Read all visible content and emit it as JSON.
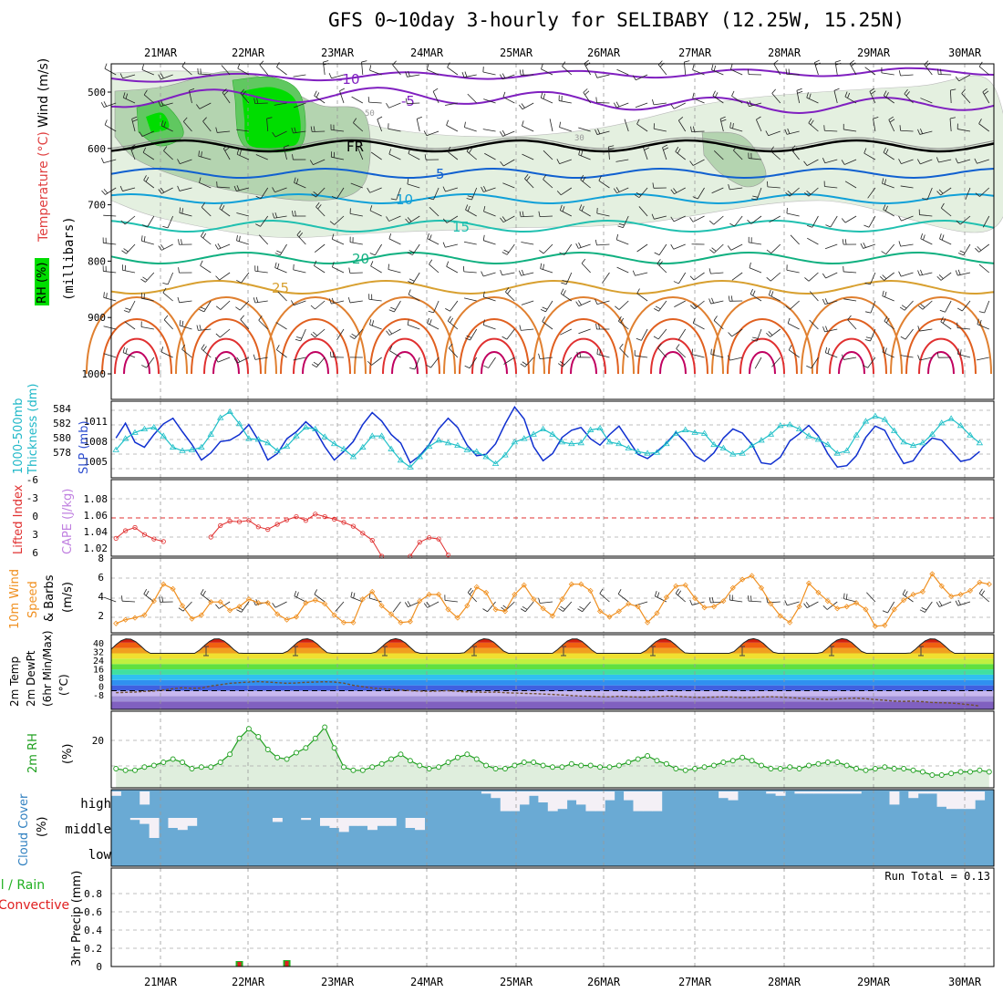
{
  "title": "GFS 0~10day 3-hourly for SELIBABY (12.25W, 15.25N)",
  "date_labels": [
    "21MAR",
    "22MAR",
    "23MAR",
    "24MAR",
    "25MAR",
    "26MAR",
    "27MAR",
    "28MAR",
    "29MAR",
    "30MAR"
  ],
  "colors": {
    "rh_green": "#00dd00",
    "rh_light": "#e4f0e0",
    "rh_mid": "#b4d4b0",
    "cloud_blue": "#6aaad4",
    "cloud_white": "#f4f0f6",
    "slp": "#1030d0",
    "thickness": "#20c0c8",
    "li": "#e03030",
    "wind10": "#f09020",
    "rh2m": "#20a020",
    "precip_total": "#20b020",
    "precip_conv": "#e02020"
  },
  "chart_data": [
    {
      "type": "contour",
      "panel": "upper-air",
      "ylabels_left": [
        "RH (%)",
        "Temperature (°C)",
        "Wind (m/s)",
        "(millibars)"
      ],
      "yticks": [
        500,
        600,
        700,
        800,
        900,
        1000
      ],
      "ylim": [
        1000,
        450
      ],
      "isotherm_labels": [
        "-10",
        "-5",
        "FR",
        "5",
        "10",
        "15",
        "20",
        "25"
      ],
      "rh_contour_labels": [
        "30",
        "50"
      ]
    },
    {
      "type": "line",
      "panel": "slp-thickness",
      "ylabels": [
        "1000-500mb Thickness (dm)",
        "SLP (mb)"
      ],
      "thickness_ticks": [
        "584",
        "582",
        "580",
        "578"
      ],
      "slp_ticks": [
        "1011",
        "1008",
        "1005"
      ],
      "series": [
        {
          "name": "SLP (mb)",
          "ylim": [
            1003.4,
            1013.2
          ],
          "values": [
            1008.5,
            1010.6,
            1007.9,
            1007.2,
            1009.0,
            1010.5,
            1011.3,
            1009.4,
            1007.6,
            1005.4,
            1006.4,
            1008.0,
            1008.2,
            1009.0,
            1010.4,
            1008.2,
            1005.4,
            1006.3,
            1008.4,
            1009.4,
            1010.8,
            1009.6,
            1007.3,
            1005.4,
            1006.6,
            1008.0,
            1010.4,
            1012.1,
            1010.9,
            1009.0,
            1007.8,
            1005.0,
            1006.0,
            1007.6,
            1009.8,
            1011.3,
            1010.0,
            1007.5,
            1006.0,
            1006.2,
            1007.7,
            1010.5,
            1012.9,
            1011.2,
            1007.3,
            1005.3,
            1006.3,
            1008.6,
            1009.6,
            1010.0,
            1008.4,
            1007.5,
            1009.0,
            1010.2,
            1008.2,
            1006.2,
            1005.6,
            1006.6,
            1007.8,
            1009.3,
            1007.9,
            1006.0,
            1005.2,
            1006.4,
            1008.5,
            1009.8,
            1009.2,
            1007.6,
            1005.0,
            1004.8,
            1005.8,
            1008.1,
            1009.1,
            1010.3,
            1008.8,
            1006.3,
            1004.4,
            1004.6,
            1006.0,
            1008.6,
            1010.2,
            1009.6,
            1007.1,
            1004.9,
            1005.3,
            1007.2,
            1008.5,
            1008.2,
            1006.7,
            1005.2,
            1005.5,
            1006.6
          ]
        },
        {
          "name": "1000-500mb Thickness (dm)",
          "ylim": [
            577.2,
            585.2
          ],
          "values": [
            580.0,
            581.3,
            582.0,
            582.4,
            582.6,
            581.6,
            580.3,
            579.9,
            580.0,
            580.3,
            581.8,
            583.7,
            584.4,
            583.0,
            581.3,
            581.2,
            580.8,
            579.9,
            580.4,
            581.6,
            582.6,
            582.4,
            581.5,
            580.7,
            580.1,
            579.2,
            580.3,
            581.6,
            581.6,
            580.1,
            578.8,
            578.0,
            579.2,
            580.4,
            581.1,
            580.8,
            580.5,
            580.0,
            579.8,
            579.2,
            578.4,
            579.4,
            580.9,
            581.3,
            581.8,
            582.4,
            581.8,
            580.9,
            580.7,
            580.8,
            582.3,
            582.5,
            580.9,
            580.7,
            580.2,
            579.8,
            579.6,
            579.7,
            580.7,
            581.9,
            582.3,
            582.0,
            581.9,
            580.6,
            580.2,
            579.5,
            579.6,
            580.5,
            581.1,
            581.8,
            582.8,
            582.9,
            582.4,
            581.6,
            581.2,
            580.6,
            579.6,
            579.9,
            581.7,
            583.3,
            583.9,
            583.5,
            582.2,
            580.9,
            580.5,
            580.8,
            581.8,
            583.1,
            583.6,
            582.8,
            581.7,
            580.8
          ]
        }
      ]
    },
    {
      "type": "line",
      "panel": "lifted-index-cape",
      "ylabels": [
        "Lifted Index",
        "CAPE (J/kg)"
      ],
      "li_ticks": [
        "-6",
        "-3",
        "0",
        "3",
        "6"
      ],
      "cape_ticks": [
        "1.08",
        "1.06",
        "1.04",
        "1.02"
      ],
      "series": [
        {
          "name": "Lifted Index",
          "ylim": [
            6,
            -6
          ],
          "segments": [
            [
              [
                0,
                3.2
              ],
              [
                1,
                2.0
              ],
              [
                2,
                1.5
              ],
              [
                3,
                2.6
              ],
              [
                4,
                3.3
              ],
              [
                5,
                3.7
              ]
            ],
            [
              [
                10,
                3.0
              ],
              [
                11,
                1.2
              ],
              [
                12,
                0.5
              ],
              [
                13,
                0.6
              ],
              [
                14,
                0.4
              ],
              [
                15,
                1.4
              ],
              [
                16,
                1.8
              ],
              [
                17,
                1.0
              ],
              [
                18,
                0.3
              ],
              [
                19,
                -0.2
              ],
              [
                20,
                0.4
              ],
              [
                21,
                -0.6
              ],
              [
                22,
                -0.2
              ],
              [
                23,
                0.2
              ],
              [
                24,
                0.7
              ],
              [
                25,
                1.3
              ],
              [
                26,
                2.4
              ],
              [
                27,
                3.5
              ],
              [
                28,
                6.0
              ]
            ],
            [
              [
                31,
                6.0
              ],
              [
                32,
                3.8
              ],
              [
                33,
                3.1
              ],
              [
                34,
                3.3
              ],
              [
                35,
                5.8
              ]
            ]
          ]
        }
      ]
    },
    {
      "type": "line",
      "panel": "10m-wind",
      "ylabels": [
        "10m Wind",
        "Speed",
        "& Barbs",
        "(m/s)"
      ],
      "yticks": [
        "8",
        "6",
        "4",
        "2"
      ],
      "ylim": [
        0.4,
        8.4
      ],
      "values": [
        1.4,
        1.8,
        2.0,
        2.3,
        3.8,
        5.6,
        5.1,
        3.3,
        1.9,
        2.3,
        3.7,
        3.7,
        2.8,
        3.2,
        4.0,
        3.6,
        3.6,
        2.4,
        1.8,
        2.1,
        3.6,
        3.9,
        3.5,
        2.3,
        1.5,
        1.5,
        4.0,
        4.8,
        3.3,
        2.4,
        1.5,
        1.6,
        3.8,
        4.5,
        4.5,
        2.9,
        2.0,
        3.3,
        5.3,
        4.7,
        2.9,
        2.7,
        4.5,
        5.5,
        4.0,
        3.0,
        2.2,
        4.0,
        5.6,
        5.6,
        4.9,
        2.7,
        2.1,
        2.7,
        3.5,
        3.2,
        1.5,
        2.5,
        4.2,
        5.4,
        5.5,
        4.1,
        3.1,
        3.2,
        3.8,
        5.2,
        6.1,
        6.5,
        5.2,
        3.5,
        2.2,
        1.5,
        3.2,
        5.7,
        4.7,
        3.8,
        3.0,
        3.2,
        3.6,
        2.9,
        1.1,
        1.2,
        2.9,
        3.9,
        4.5,
        4.8,
        6.7,
        5.4,
        4.3,
        4.5,
        4.9,
        5.8,
        5.6
      ]
    },
    {
      "type": "area",
      "panel": "2m-temp",
      "ylabels": [
        "2m Temp",
        "2m DewPt",
        "(6hr Min/Max)",
        "(°C)"
      ],
      "yticks": [
        "40",
        "32",
        "24",
        "16",
        "8",
        "0",
        "-8"
      ],
      "ylim": [
        -14,
        42
      ],
      "temp_daily": {
        "min": 28,
        "max": 39
      },
      "dewpt": [
        -1.5,
        -1.2,
        -1.0,
        -0.5,
        -0.2,
        0.5,
        1.5,
        2.2,
        1.8,
        2.0,
        3.5,
        4.5,
        5.5,
        6.0,
        6.5,
        6.8,
        6.5,
        6.0,
        5.5,
        5.8,
        6.3,
        6.5,
        6.7,
        6.5,
        5.7,
        4.0,
        3.0,
        2.0,
        1.5,
        1.0,
        0.5,
        0.0,
        -0.3,
        -0.5,
        -0.2,
        0.0,
        -0.5,
        -0.8,
        -1.0,
        -1.2,
        -1.0,
        -1.5,
        -1.8,
        -2.0,
        -2.2,
        -2.5,
        -2.8,
        -3.2,
        -3.6,
        -4.0,
        -4.2,
        -4.5,
        -4.6,
        -4.2,
        -4.5,
        -4.8,
        -4.8,
        -4.4,
        -4.0,
        -4.2,
        -4.6,
        -5.0,
        -5.0,
        -4.8,
        -4.6,
        -4.8,
        -5.2,
        -5.0,
        -4.7,
        -4.5,
        -4.8,
        -5.2,
        -5.6,
        -6.0,
        -6.3,
        -6.6,
        -6.2,
        -5.8,
        -5.5,
        -6.0,
        -6.6,
        -7.2,
        -7.8,
        -8.0,
        -7.8,
        -8.2,
        -8.8,
        -9.0,
        -9.2,
        -9.8,
        -10.5,
        -11.5
      ]
    },
    {
      "type": "line",
      "panel": "2m-rh",
      "ylabels": [
        "2m RH",
        "(%)"
      ],
      "yticks": [
        "20"
      ],
      "ylim": [
        -7,
        41
      ],
      "values": [
        5,
        4,
        4,
        6,
        7,
        9,
        11,
        9,
        5,
        6,
        6,
        9,
        14,
        24,
        30,
        25,
        17,
        12,
        11,
        15,
        18,
        24,
        31,
        18,
        6,
        4,
        4,
        6,
        8,
        11,
        14,
        10,
        7,
        5,
        6,
        9,
        12,
        14,
        11,
        7,
        5,
        5,
        7,
        9,
        9,
        7,
        6,
        6,
        8,
        7,
        7,
        6,
        6,
        7,
        9,
        11,
        13,
        10,
        8,
        5,
        4,
        5,
        6,
        7,
        9,
        10,
        12,
        10,
        7,
        5,
        5,
        6,
        5,
        7,
        8,
        9,
        9,
        7,
        5,
        4,
        5,
        6,
        5,
        5,
        4,
        3,
        1,
        1,
        2,
        3,
        3,
        4,
        3
      ]
    },
    {
      "type": "bar",
      "panel": "cloud-cover",
      "ylabels": [
        "Cloud Cover",
        "(%)"
      ],
      "levels": [
        "high",
        "middle",
        "low"
      ],
      "high": [
        20,
        0,
        0,
        60,
        0,
        0,
        0,
        0,
        0,
        0,
        0,
        0,
        0,
        0,
        0,
        0,
        0,
        0,
        0,
        0,
        0,
        0,
        0,
        0,
        0,
        0,
        0,
        0,
        0,
        0,
        0,
        0,
        0,
        0,
        0,
        0,
        0,
        0,
        0,
        10,
        30,
        90,
        90,
        60,
        20,
        50,
        90,
        80,
        40,
        60,
        90,
        90,
        40,
        0,
        40,
        90,
        90,
        90,
        0,
        0,
        0,
        0,
        0,
        0,
        30,
        40,
        0,
        0,
        0,
        10,
        20,
        0,
        10,
        10,
        10,
        10,
        10,
        10,
        10,
        0,
        0,
        0,
        60,
        0,
        30,
        10,
        10,
        70,
        80,
        80,
        80,
        40,
        0
      ],
      "middle": [
        0,
        0,
        10,
        30,
        100,
        0,
        50,
        60,
        40,
        0,
        0,
        0,
        0,
        0,
        0,
        0,
        0,
        20,
        0,
        0,
        10,
        0,
        40,
        50,
        70,
        40,
        40,
        60,
        40,
        40,
        0,
        50,
        60,
        0,
        0,
        0,
        0,
        0,
        0,
        0,
        0,
        0,
        0,
        0,
        0,
        0,
        0,
        0,
        0,
        0,
        0,
        0,
        0,
        0,
        0,
        0,
        0,
        0,
        0,
        0,
        0,
        0,
        0,
        0,
        0,
        0,
        0,
        0,
        0,
        0,
        0,
        0,
        0,
        0,
        0,
        0,
        0,
        0,
        0,
        0,
        0,
        0,
        0,
        0,
        0,
        0,
        0,
        0,
        0,
        0,
        0,
        0
      ],
      "low": []
    },
    {
      "type": "bar",
      "panel": "precip",
      "ylabels": [
        "Total / Rain",
        "Convective",
        "3hr Precip (mm)"
      ],
      "yticks": [
        "0.8",
        "0.6",
        "0.4",
        "0.2",
        "0"
      ],
      "ylim": [
        0,
        1.0
      ],
      "run_total_label": "Run Total = 0.13",
      "bars": [
        {
          "index": 13,
          "total": 0.06,
          "convective": 0.06
        },
        {
          "index": 18,
          "total": 0.07,
          "convective": 0.07
        }
      ]
    }
  ]
}
